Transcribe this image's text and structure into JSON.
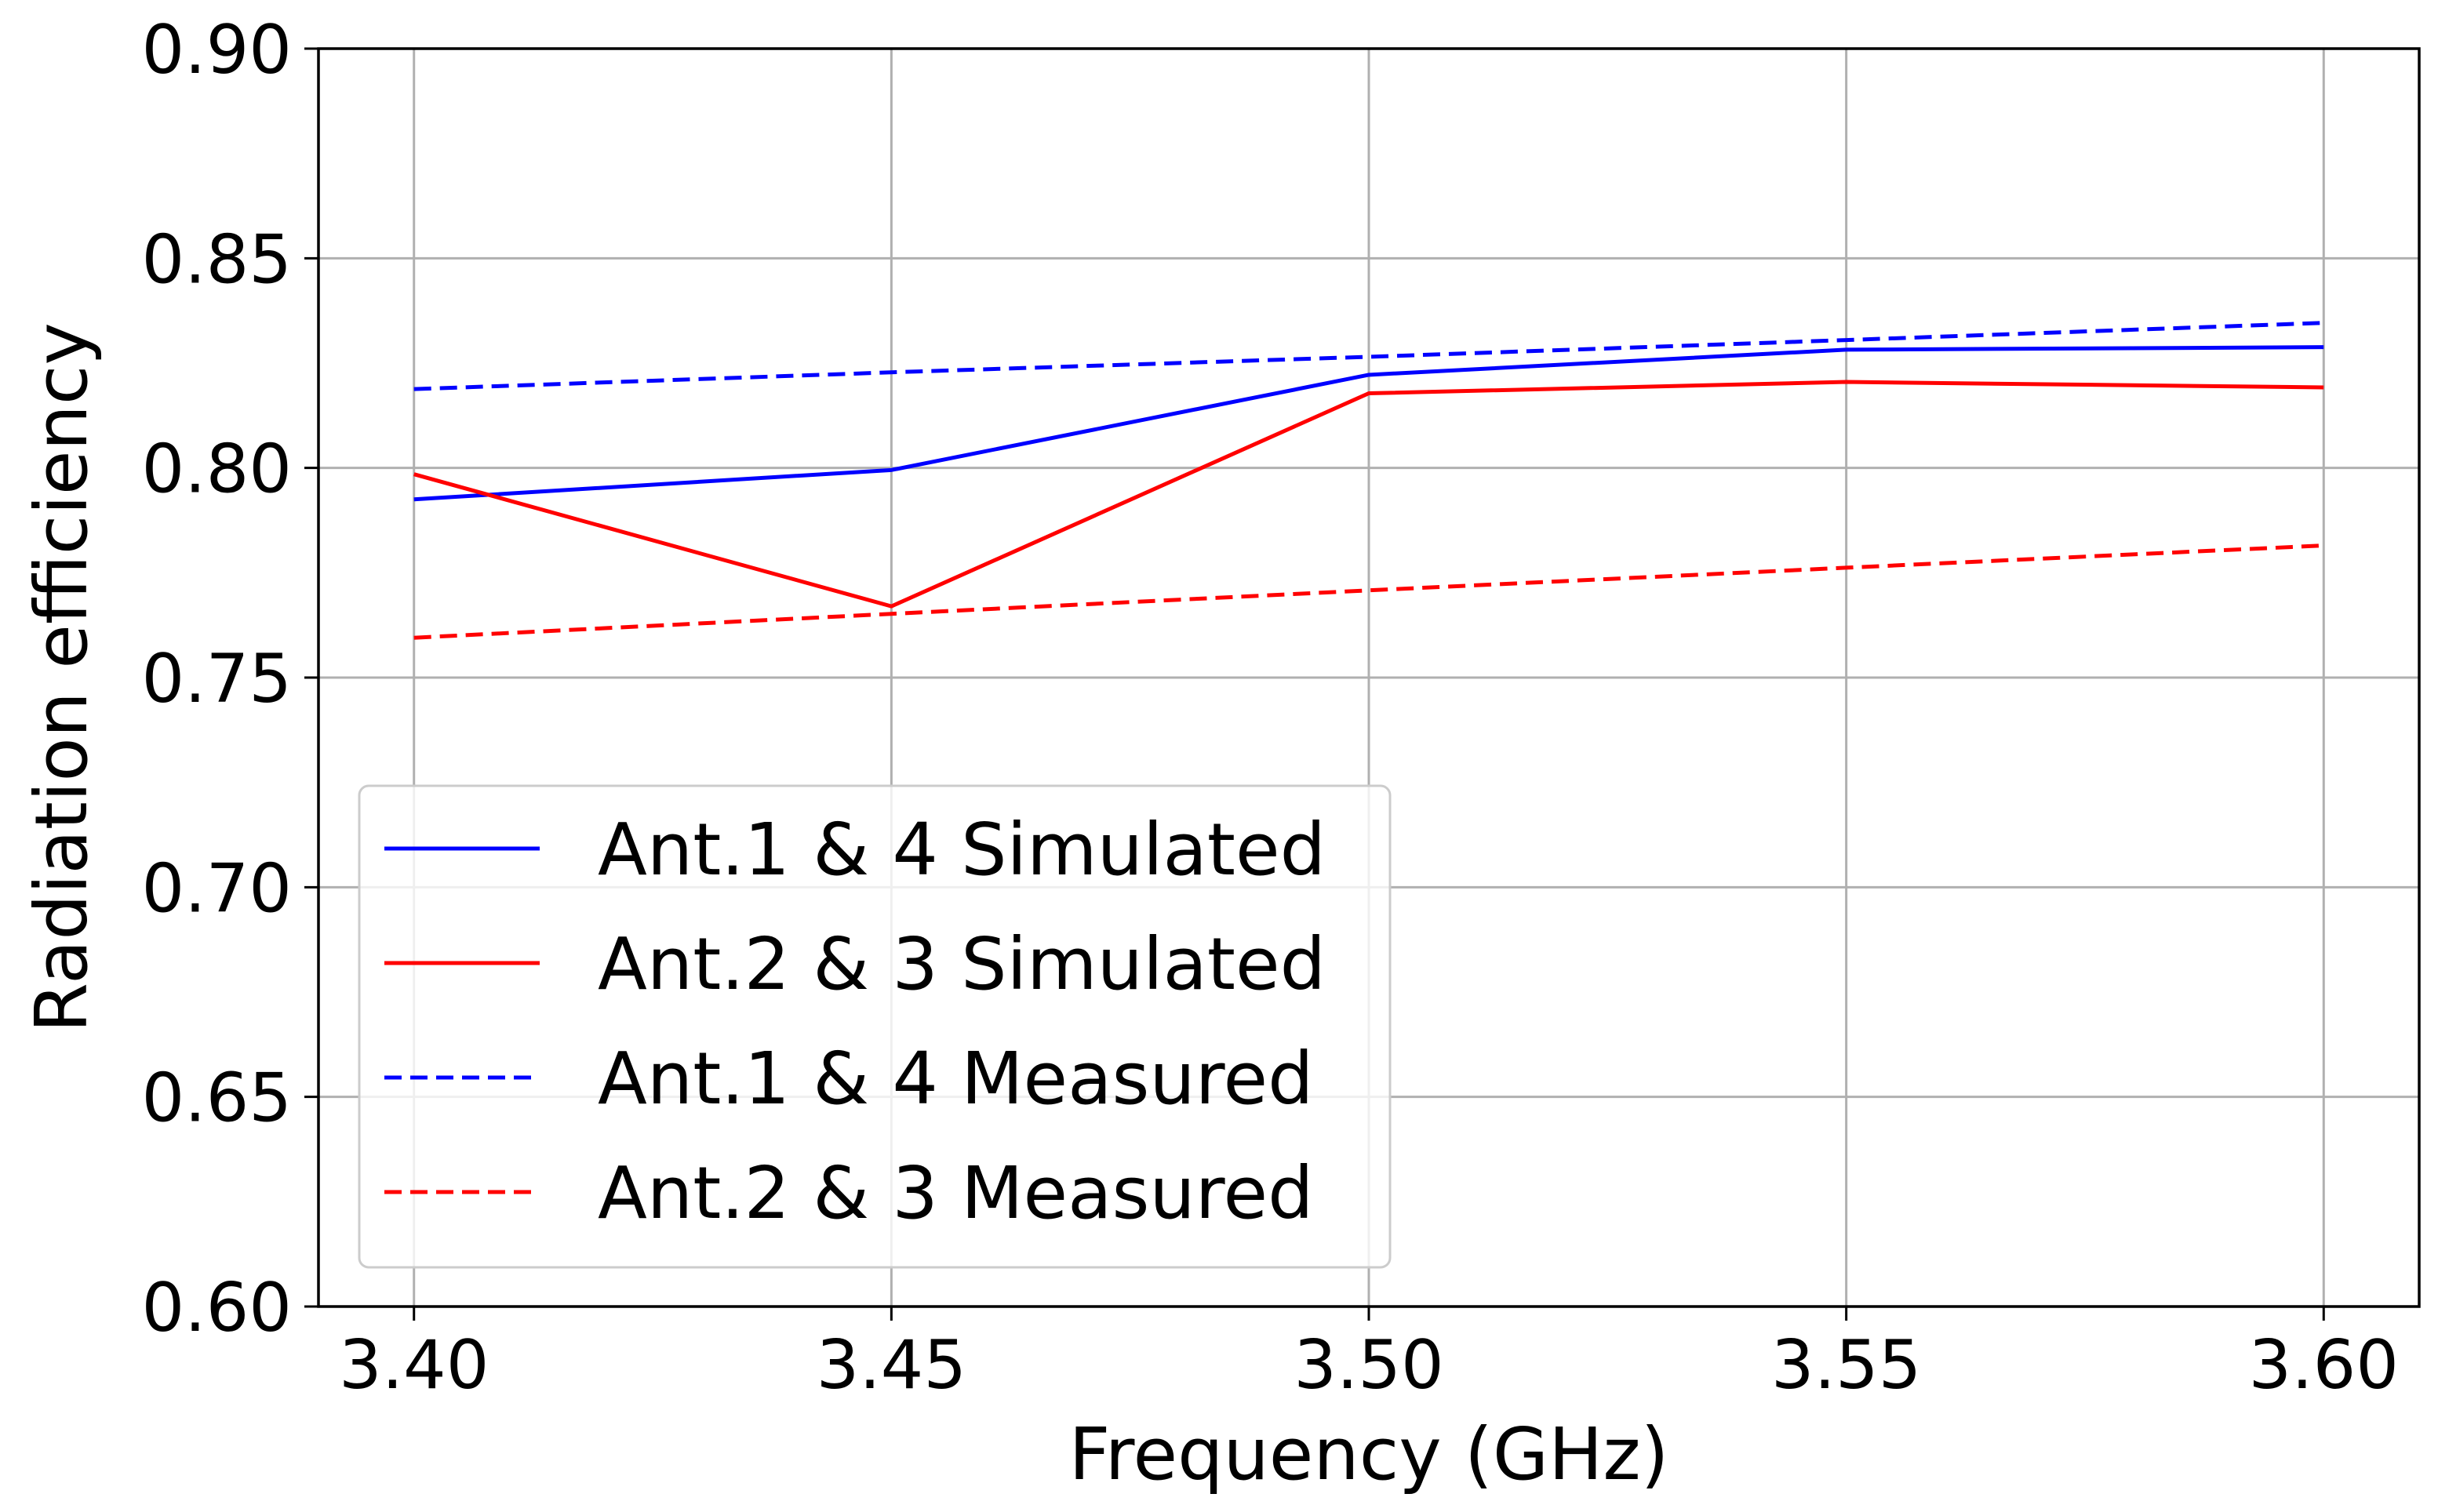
{
  "chart_data": {
    "type": "line",
    "title": "",
    "xlabel": "Frequency (GHz)",
    "ylabel": "Radiation efficiency",
    "xlim": [
      3.39,
      3.61
    ],
    "ylim": [
      0.6,
      0.9
    ],
    "grid": true,
    "legend_location": "lower-left",
    "x": [
      3.4,
      3.45,
      3.5,
      3.55,
      3.6
    ],
    "x_ticks": [
      "3.40",
      "3.45",
      "3.50",
      "3.55",
      "3.60"
    ],
    "y_ticks": [
      "0.60",
      "0.65",
      "0.70",
      "0.75",
      "0.80",
      "0.85",
      "0.90"
    ],
    "series": [
      {
        "name": "Ant.1 & 4 Simulated",
        "values": [
          0.7925,
          0.7995,
          0.8222,
          0.8282,
          0.8288
        ],
        "color": "#0000ff",
        "style": "solid"
      },
      {
        "name": "Ant.2 & 3 Simulated",
        "values": [
          0.7985,
          0.767,
          0.8178,
          0.8205,
          0.8192
        ],
        "color": "#ff0000",
        "style": "solid"
      },
      {
        "name": "Ant.1 & 4 Measured",
        "values": [
          0.8188,
          0.8228,
          0.8265,
          0.8305,
          0.8346
        ],
        "color": "#0000ff",
        "style": "dashed"
      },
      {
        "name": "Ant.2 & 3 Measured",
        "values": [
          0.7595,
          0.7652,
          0.7708,
          0.7762,
          0.7815
        ],
        "color": "#ff0000",
        "style": "dashed"
      }
    ]
  }
}
